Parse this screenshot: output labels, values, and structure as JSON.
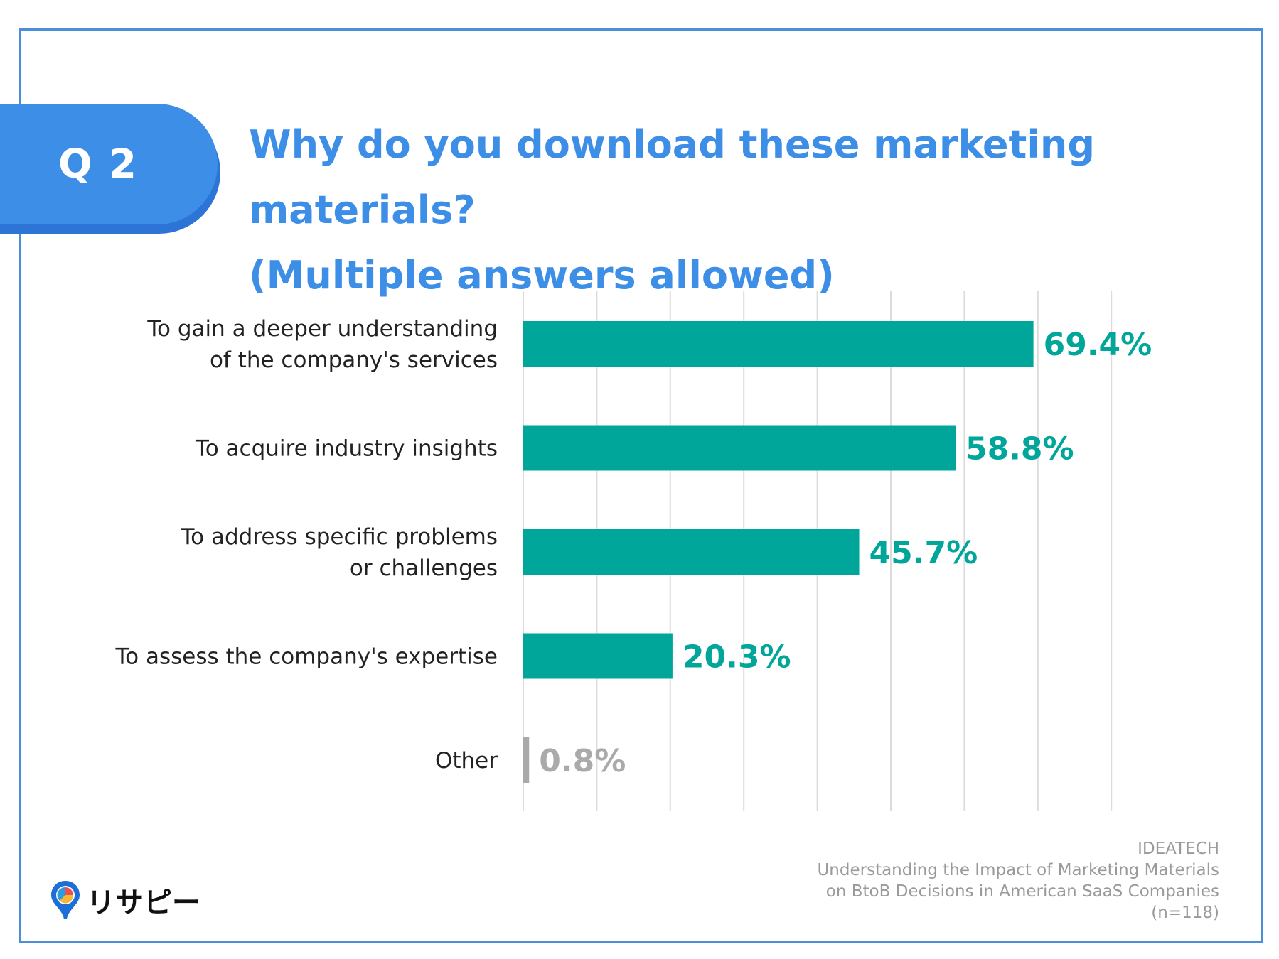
{
  "badge": {
    "label": "Q 2"
  },
  "title": {
    "line1": "Why do you download these marketing materials?",
    "line2": "(Multiple answers allowed)"
  },
  "chart_data": {
    "type": "bar",
    "orientation": "horizontal",
    "title": "",
    "xlabel": "",
    "ylabel": "",
    "xlim": [
      0,
      80
    ],
    "grid": true,
    "categories": [
      [
        "To gain a deeper understanding",
        "of the company's services"
      ],
      [
        "To acquire industry insights"
      ],
      [
        "To address specific problems",
        "or challenges"
      ],
      [
        "To assess the company's expertise"
      ],
      [
        "Other"
      ]
    ],
    "values": [
      69.4,
      58.8,
      45.7,
      20.3,
      0.8
    ],
    "value_labels": [
      "69.4%",
      "58.8%",
      "45.7%",
      "20.3%",
      "0.8%"
    ],
    "colors": [
      "#00a69a",
      "#00a69a",
      "#00a69a",
      "#00a69a",
      "#aaaaaa"
    ]
  },
  "footer": {
    "org": "IDEATECH",
    "line1": "Understanding the Impact of Marketing Materials",
    "line2": "on BtoB Decisions in American SaaS Companies",
    "n": "(n=118)"
  },
  "logo": {
    "text": "リサピー"
  }
}
